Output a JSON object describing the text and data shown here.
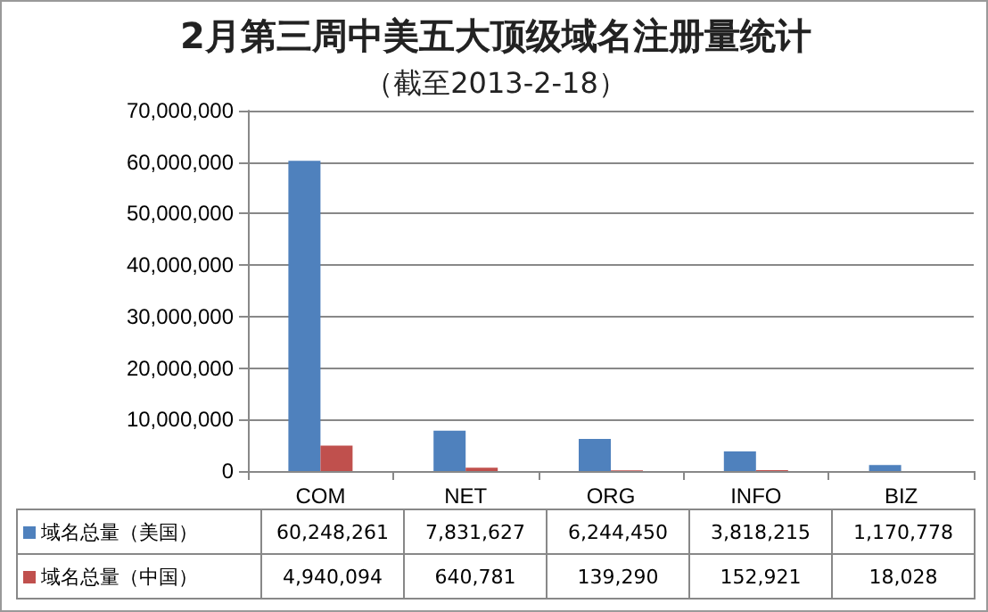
{
  "chart_data": {
    "type": "bar",
    "title": "2月第三周中美五大顶级域名注册量统计",
    "subtitle": "（截至2013-2-18）",
    "categories": [
      "COM",
      "NET",
      "ORG",
      "INFO",
      "BIZ"
    ],
    "series": [
      {
        "name": "域名总量（美国）",
        "color": "#4f81bd",
        "values": [
          60248261,
          7831627,
          6244450,
          3818215,
          1170778
        ],
        "value_labels": [
          "60,248,261",
          "7,831,627",
          "6,244,450",
          "3,818,215",
          "1,170,778"
        ]
      },
      {
        "name": "域名总量（中国）",
        "color": "#c0504d",
        "values": [
          4940094,
          640781,
          139290,
          152921,
          18028
        ],
        "value_labels": [
          "4,940,094",
          "640,781",
          "139,290",
          "152,921",
          "18,028"
        ]
      }
    ],
    "ylim": [
      0,
      70000000
    ],
    "yticks": [
      {
        "value": 0,
        "label": "0"
      },
      {
        "value": 10000000,
        "label": "10,000,000"
      },
      {
        "value": 20000000,
        "label": "20,000,000"
      },
      {
        "value": 30000000,
        "label": "30,000,000"
      },
      {
        "value": 40000000,
        "label": "40,000,000"
      },
      {
        "value": 50000000,
        "label": "50,000,000"
      },
      {
        "value": 60000000,
        "label": "60,000,000"
      },
      {
        "value": 70000000,
        "label": "70,000,000"
      }
    ],
    "grid": "y",
    "legend": "bottom"
  }
}
